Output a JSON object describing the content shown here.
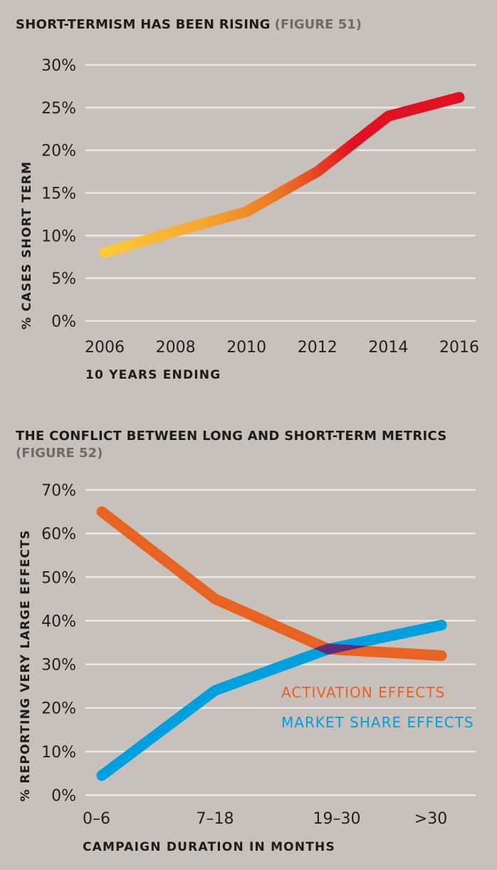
{
  "chart_data": [
    {
      "type": "line",
      "title": "SHORT-TERMISM HAS BEEN RISING",
      "figure_label": "(FIGURE 51)",
      "xlabel": "10 YEARS ENDING",
      "ylabel": "% CASES SHORT TERM",
      "categories": [
        "2006",
        "2008",
        "2010",
        "2012",
        "2014",
        "2016"
      ],
      "x": [
        2006,
        2008,
        2010,
        2012,
        2014,
        2016
      ],
      "yticks": [
        "0%",
        "5%",
        "10%",
        "15%",
        "20%",
        "25%",
        "30%"
      ],
      "ylim": [
        0,
        30
      ],
      "grid": true,
      "series": [
        {
          "name": "% cases short term",
          "values": [
            8,
            10.5,
            12.8,
            17.5,
            24,
            26.2
          ],
          "color_gradient": [
            "#fcca3c",
            "#f39a2a",
            "#e8601f",
            "#e21122"
          ]
        }
      ]
    },
    {
      "type": "line",
      "title": "THE CONFLICT BETWEEN LONG AND SHORT-TERM METRICS",
      "figure_label": "(FIGURE 52)",
      "xlabel": "CAMPAIGN DURATION IN MONTHS",
      "ylabel": "% REPORTING VERY LARGE EFFECTS",
      "categories": [
        "0–6",
        "7–18",
        "19–30",
        ">30"
      ],
      "yticks": [
        "0%",
        "10%",
        "20%",
        "30%",
        "40%",
        "50%",
        "60%",
        "70%"
      ],
      "ylim": [
        0,
        70
      ],
      "grid": true,
      "legend_position": "right",
      "series": [
        {
          "name": "ACTIVATION EFFECTS",
          "values": [
            65,
            45,
            33.5,
            32
          ],
          "color": "#e86222"
        },
        {
          "name": "MARKET SHARE EFFECTS",
          "values": [
            4.5,
            24,
            33.5,
            39
          ],
          "color": "#009fde"
        }
      ],
      "overlap_color": "#5b2d7a"
    }
  ]
}
